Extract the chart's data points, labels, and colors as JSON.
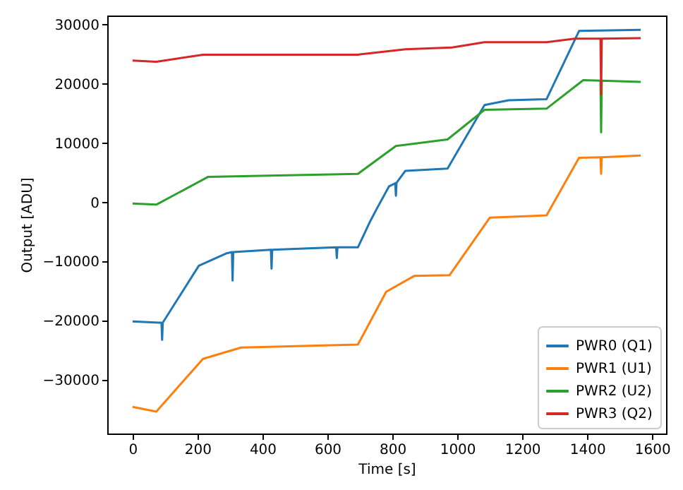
{
  "chart_data": {
    "type": "line",
    "xlabel": "Time [s]",
    "ylabel": "Output [ADU]",
    "xlim": [
      -78,
      1643
    ],
    "ylim": [
      -39000,
      31500
    ],
    "xticks": [
      0,
      200,
      400,
      600,
      800,
      1000,
      1200,
      1400,
      1600
    ],
    "yticks": [
      -30000,
      -20000,
      -10000,
      0,
      10000,
      20000,
      30000
    ],
    "grid": false,
    "legend": "bottom right",
    "marker": "none",
    "line_style": "solid",
    "series": [
      {
        "name": "PWR0 (Q1)",
        "color": "#1f77b4",
        "x": [
          0,
          81,
          89,
          91,
          93,
          204,
          290,
          306,
          308,
          310,
          426,
          428,
          430,
          627,
          629,
          631,
          694,
          730,
          753,
          790,
          809,
          811,
          813,
          840,
          970,
          1084,
          1158,
          1275,
          1375,
          1565
        ],
        "values": [
          -20100,
          -20300,
          -20300,
          -23200,
          -20300,
          -10700,
          -8600,
          -8400,
          -13200,
          -8400,
          -8000,
          -11200,
          -8000,
          -7600,
          -9400,
          -7600,
          -7600,
          -3400,
          -1000,
          2700,
          3200,
          1100,
          3300,
          5300,
          5700,
          16400,
          17200,
          17400,
          28900,
          29100
        ]
      },
      {
        "name": "PWR1 (U1)",
        "color": "#ff7f0e",
        "x": [
          0,
          73,
          217,
          334,
          694,
          781,
          868,
          976,
          1100,
          1275,
          1375,
          1441,
          1443,
          1445,
          1565
        ],
        "values": [
          -34500,
          -35300,
          -26400,
          -24500,
          -24000,
          -15100,
          -12400,
          -12300,
          -2600,
          -2200,
          7500,
          7600,
          4800,
          7600,
          7900
        ]
      },
      {
        "name": "PWR2 (U2)",
        "color": "#2ca02c",
        "x": [
          0,
          73,
          233,
          694,
          811,
          970,
          1084,
          1275,
          1388,
          1441,
          1443,
          1445,
          1565
        ],
        "values": [
          -200,
          -400,
          4300,
          4800,
          9500,
          10600,
          15600,
          15800,
          20600,
          20500,
          11800,
          20500,
          20300
        ]
      },
      {
        "name": "PWR3 (Q2)",
        "color": "#d62728",
        "x": [
          0,
          73,
          217,
          694,
          841,
          984,
          1084,
          1275,
          1362,
          1441,
          1443,
          1445,
          1565
        ],
        "values": [
          23900,
          23700,
          24900,
          24900,
          25800,
          26100,
          27000,
          27000,
          27600,
          27600,
          18200,
          27600,
          27700
        ]
      }
    ]
  }
}
